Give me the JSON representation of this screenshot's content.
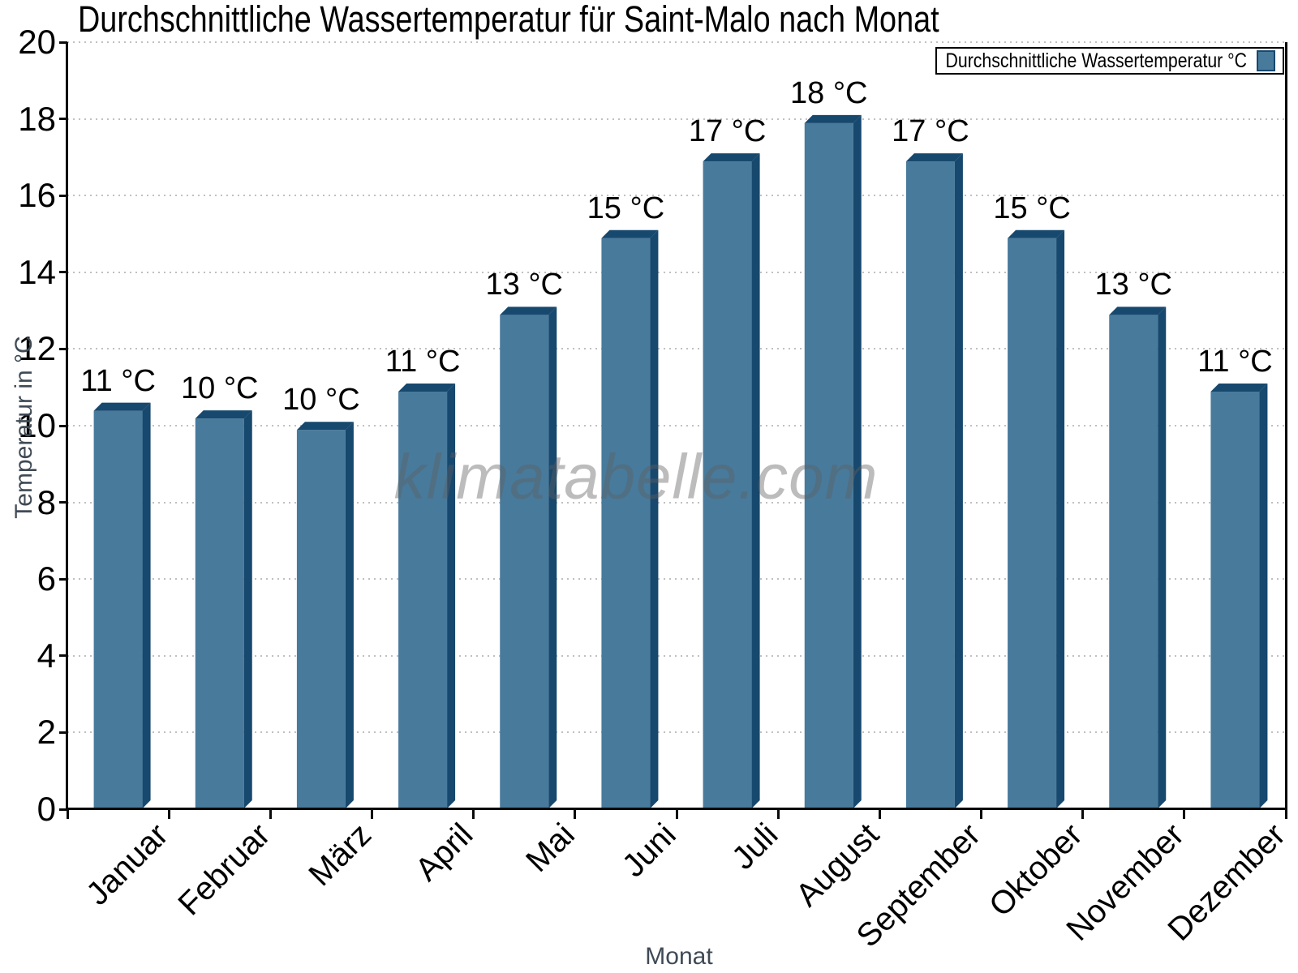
{
  "watermark": "klimatabelle.com",
  "colors": {
    "bar_face": "#487a9c",
    "bar_edge": "#17486e",
    "axis_title_text": "#3f4a55",
    "grid": "#c0c0c0",
    "axis_line": "#0a0a0a"
  },
  "chart_data": {
    "type": "bar",
    "title": "Durchschnittliche Wassertemperatur für Saint-Malo nach Monat",
    "xlabel": "Monat",
    "ylabel": "Temperatur in °C",
    "legend": "Durchschnittliche Wassertemperatur °C",
    "legend_position": "top-right",
    "categories": [
      "Januar",
      "Februar",
      "März",
      "April",
      "Mai",
      "Juni",
      "Juli",
      "August",
      "September",
      "Oktober",
      "November",
      "Dezember"
    ],
    "values": [
      10.6,
      10.4,
      10.1,
      11.1,
      13.1,
      15.1,
      17.1,
      18.1,
      17.1,
      15.1,
      13.1,
      11.1
    ],
    "value_labels": [
      "11 °C",
      "10 °C",
      "10 °C",
      "11 °C",
      "13 °C",
      "15 °C",
      "17 °C",
      "18 °C",
      "17 °C",
      "15 °C",
      "13 °C",
      "11 °C"
    ],
    "ylim": [
      0,
      20
    ],
    "ytick_step": 2,
    "grid": "horizontal-dotted",
    "bar_style": "3d-extruded"
  }
}
